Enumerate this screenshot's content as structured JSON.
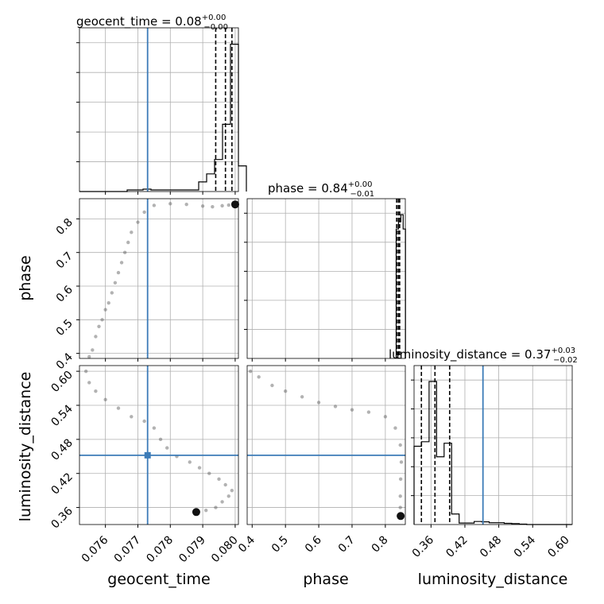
{
  "chart_data": {
    "type": "corner",
    "truth_color": "#3d7cb8",
    "params": [
      {
        "key": "geocent_time",
        "axis_label": "geocent_time",
        "title_main": "geocent_time = 0.08",
        "title_sup": "+0.00",
        "title_sub": "−0.00",
        "range": [
          0.0752,
          0.0801
        ],
        "ticks": [
          0.076,
          0.077,
          0.078,
          0.079,
          0.08
        ],
        "tick_labels": [
          "0.076",
          "0.077",
          "0.078",
          "0.079",
          "0.080"
        ],
        "truth": 0.0773,
        "quantiles": [
          0.0794,
          0.0797,
          0.0799
        ],
        "hist_edges_start": 0.0752,
        "hist_bin_width": 0.000245,
        "hist_counts": [
          0,
          0,
          0,
          0,
          0,
          0,
          0.01,
          0.01,
          0.015,
          0.01,
          0.01,
          0.01,
          0.01,
          0.01,
          0.01,
          0.06,
          0.11,
          0.2,
          0.42,
          0.92,
          0.16
        ]
      },
      {
        "key": "phase",
        "axis_label": "phase",
        "title_main": "phase = 0.84",
        "title_sup": "+0.00",
        "title_sub": "−0.01",
        "range": [
          0.385,
          0.86
        ],
        "ticks": [
          0.4,
          0.5,
          0.6,
          0.7,
          0.8
        ],
        "tick_labels": [
          "0.4",
          "0.5",
          "0.6",
          "0.7",
          "0.8"
        ],
        "truth": null,
        "quantiles": [
          0.834,
          0.839,
          0.843
        ],
        "hist_edges_start": 0.8325,
        "hist_bin_width": 0.007,
        "hist_counts": [
          0.9,
          0.95,
          1.0,
          0.9
        ]
      },
      {
        "key": "luminosity_distance",
        "axis_label": "luminosity_distance",
        "title_main": "luminosity_distance = 0.37",
        "title_sup": "+0.03",
        "title_sub": "−0.02",
        "range": [
          0.33,
          0.61
        ],
        "ticks": [
          0.36,
          0.42,
          0.48,
          0.54,
          0.6
        ],
        "tick_labels": [
          "0.36",
          "0.42",
          "0.48",
          "0.54",
          "0.60"
        ],
        "truth": 0.452,
        "quantiles": [
          0.343,
          0.367,
          0.393
        ],
        "hist_edges_start": 0.33,
        "hist_bin_width": 0.0133,
        "hist_counts": [
          0.52,
          0.55,
          0.95,
          0.45,
          0.54,
          0.07,
          0.01,
          0.01,
          0.02,
          0.018,
          0.012,
          0.012,
          0.008,
          0.006,
          0.003,
          0,
          0,
          0,
          0,
          0,
          0
        ]
      }
    ],
    "scatter_points": {
      "phase_vs_geocent_time": [
        [
          0.0755,
          0.39
        ],
        [
          0.0756,
          0.41
        ],
        [
          0.0757,
          0.45
        ],
        [
          0.0758,
          0.48
        ],
        [
          0.0759,
          0.5
        ],
        [
          0.076,
          0.53
        ],
        [
          0.0761,
          0.55
        ],
        [
          0.0762,
          0.58
        ],
        [
          0.0763,
          0.61
        ],
        [
          0.0764,
          0.64
        ],
        [
          0.0765,
          0.67
        ],
        [
          0.0766,
          0.7
        ],
        [
          0.0767,
          0.73
        ],
        [
          0.0768,
          0.76
        ],
        [
          0.077,
          0.79
        ],
        [
          0.0772,
          0.82
        ],
        [
          0.0775,
          0.84
        ],
        [
          0.078,
          0.845
        ],
        [
          0.0785,
          0.843
        ],
        [
          0.079,
          0.838
        ],
        [
          0.0793,
          0.836
        ],
        [
          0.0796,
          0.839
        ],
        [
          0.0798,
          0.841
        ],
        [
          0.08,
          0.843
        ]
      ],
      "luminosity_distance_vs_geocent_time": [
        [
          0.0754,
          0.6
        ],
        [
          0.0755,
          0.58
        ],
        [
          0.0757,
          0.565
        ],
        [
          0.076,
          0.55
        ],
        [
          0.0764,
          0.535
        ],
        [
          0.0768,
          0.52
        ],
        [
          0.0772,
          0.512
        ],
        [
          0.0775,
          0.5
        ],
        [
          0.0777,
          0.48
        ],
        [
          0.0779,
          0.465
        ],
        [
          0.0782,
          0.45
        ],
        [
          0.0786,
          0.44
        ],
        [
          0.0789,
          0.43
        ],
        [
          0.0792,
          0.42
        ],
        [
          0.0795,
          0.41
        ],
        [
          0.0797,
          0.4
        ],
        [
          0.0799,
          0.39
        ],
        [
          0.0798,
          0.38
        ],
        [
          0.0796,
          0.37
        ],
        [
          0.0794,
          0.36
        ],
        [
          0.0791,
          0.355
        ],
        [
          0.0788,
          0.352
        ]
      ],
      "luminosity_distance_vs_phase": [
        [
          0.395,
          0.6
        ],
        [
          0.42,
          0.59
        ],
        [
          0.46,
          0.575
        ],
        [
          0.5,
          0.565
        ],
        [
          0.55,
          0.555
        ],
        [
          0.6,
          0.545
        ],
        [
          0.65,
          0.538
        ],
        [
          0.7,
          0.532
        ],
        [
          0.75,
          0.528
        ],
        [
          0.8,
          0.52
        ],
        [
          0.83,
          0.5
        ],
        [
          0.845,
          0.47
        ],
        [
          0.848,
          0.44
        ],
        [
          0.846,
          0.41
        ],
        [
          0.845,
          0.38
        ],
        [
          0.845,
          0.36
        ],
        [
          0.846,
          0.345
        ]
      ]
    }
  }
}
